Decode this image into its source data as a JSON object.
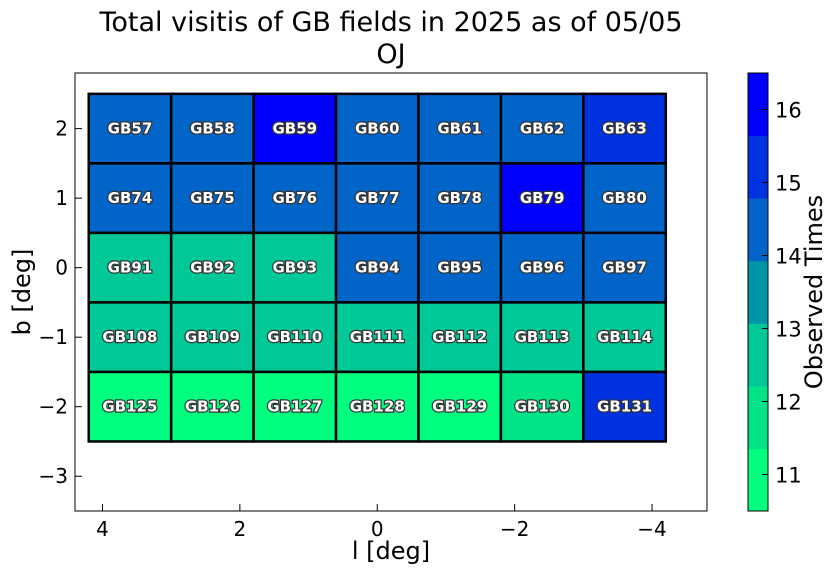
{
  "chart_data": {
    "type": "heatmap",
    "title": "Total visitis of GB fields in 2025 as of 05/05",
    "subtitle": "OJ",
    "xlabel": "l [deg]",
    "ylabel": "b [deg]",
    "xlim": [
      4.4,
      -4.8
    ],
    "ylim": [
      -3.5,
      2.8
    ],
    "x_reversed": true,
    "x_ticks": [
      4,
      2,
      0,
      -2,
      -4
    ],
    "x_tick_labels": [
      "4",
      "2",
      "0",
      "−2",
      "−4"
    ],
    "y_ticks": [
      2,
      1,
      0,
      -1,
      -2,
      -3
    ],
    "y_tick_labels": [
      "2",
      "1",
      "0",
      "−1",
      "−2",
      "−3"
    ],
    "grid": false,
    "colorbar": {
      "label": "Observed Times",
      "range": [
        10.5,
        16.5
      ],
      "ticks": [
        11,
        12,
        13,
        14,
        15,
        16
      ],
      "tick_labels": [
        "11",
        "12",
        "13",
        "14",
        "15",
        "16"
      ],
      "colors": [
        "#00ff7f",
        "#00e386",
        "#00c896",
        "#0096a8",
        "#0064c8",
        "#0032e1",
        "#0000ff"
      ]
    },
    "fields": [
      {
        "name": "GB57",
        "l": 3.6,
        "b": 2.0,
        "observed_times": 14
      },
      {
        "name": "GB58",
        "l": 2.4,
        "b": 2.0,
        "observed_times": 14
      },
      {
        "name": "GB59",
        "l": 1.2,
        "b": 2.0,
        "observed_times": 16
      },
      {
        "name": "GB60",
        "l": 0.0,
        "b": 2.0,
        "observed_times": 14
      },
      {
        "name": "GB61",
        "l": -1.2,
        "b": 2.0,
        "observed_times": 14
      },
      {
        "name": "GB62",
        "l": -2.4,
        "b": 2.0,
        "observed_times": 14
      },
      {
        "name": "GB63",
        "l": -3.6,
        "b": 2.0,
        "observed_times": 15
      },
      {
        "name": "GB74",
        "l": 3.6,
        "b": 1.0,
        "observed_times": 14
      },
      {
        "name": "GB75",
        "l": 2.4,
        "b": 1.0,
        "observed_times": 14
      },
      {
        "name": "GB76",
        "l": 1.2,
        "b": 1.0,
        "observed_times": 14
      },
      {
        "name": "GB77",
        "l": 0.0,
        "b": 1.0,
        "observed_times": 14
      },
      {
        "name": "GB78",
        "l": -1.2,
        "b": 1.0,
        "observed_times": 14
      },
      {
        "name": "GB79",
        "l": -2.4,
        "b": 1.0,
        "observed_times": 16
      },
      {
        "name": "GB80",
        "l": -3.6,
        "b": 1.0,
        "observed_times": 14
      },
      {
        "name": "GB91",
        "l": 3.6,
        "b": 0.0,
        "observed_times": 13
      },
      {
        "name": "GB92",
        "l": 2.4,
        "b": 0.0,
        "observed_times": 13
      },
      {
        "name": "GB93",
        "l": 1.2,
        "b": 0.0,
        "observed_times": 13
      },
      {
        "name": "GB94",
        "l": 0.0,
        "b": 0.0,
        "observed_times": 14
      },
      {
        "name": "GB95",
        "l": -1.2,
        "b": 0.0,
        "observed_times": 14
      },
      {
        "name": "GB96",
        "l": -2.4,
        "b": 0.0,
        "observed_times": 14
      },
      {
        "name": "GB97",
        "l": -3.6,
        "b": 0.0,
        "observed_times": 14
      },
      {
        "name": "GB108",
        "l": 3.6,
        "b": -1.0,
        "observed_times": 13
      },
      {
        "name": "GB109",
        "l": 2.4,
        "b": -1.0,
        "observed_times": 13
      },
      {
        "name": "GB110",
        "l": 1.2,
        "b": -1.0,
        "observed_times": 13
      },
      {
        "name": "GB111",
        "l": 0.0,
        "b": -1.0,
        "observed_times": 13
      },
      {
        "name": "GB112",
        "l": -1.2,
        "b": -1.0,
        "observed_times": 13
      },
      {
        "name": "GB113",
        "l": -2.4,
        "b": -1.0,
        "observed_times": 13
      },
      {
        "name": "GB114",
        "l": -3.6,
        "b": -1.0,
        "observed_times": 13
      },
      {
        "name": "GB125",
        "l": 3.6,
        "b": -2.0,
        "observed_times": 11
      },
      {
        "name": "GB126",
        "l": 2.4,
        "b": -2.0,
        "observed_times": 11
      },
      {
        "name": "GB127",
        "l": 1.2,
        "b": -2.0,
        "observed_times": 11
      },
      {
        "name": "GB128",
        "l": 0.0,
        "b": -2.0,
        "observed_times": 11
      },
      {
        "name": "GB129",
        "l": -1.2,
        "b": -2.0,
        "observed_times": 11
      },
      {
        "name": "GB130",
        "l": -2.4,
        "b": -2.0,
        "observed_times": 12
      },
      {
        "name": "GB131",
        "l": -3.6,
        "b": -2.0,
        "observed_times": 15
      }
    ]
  }
}
